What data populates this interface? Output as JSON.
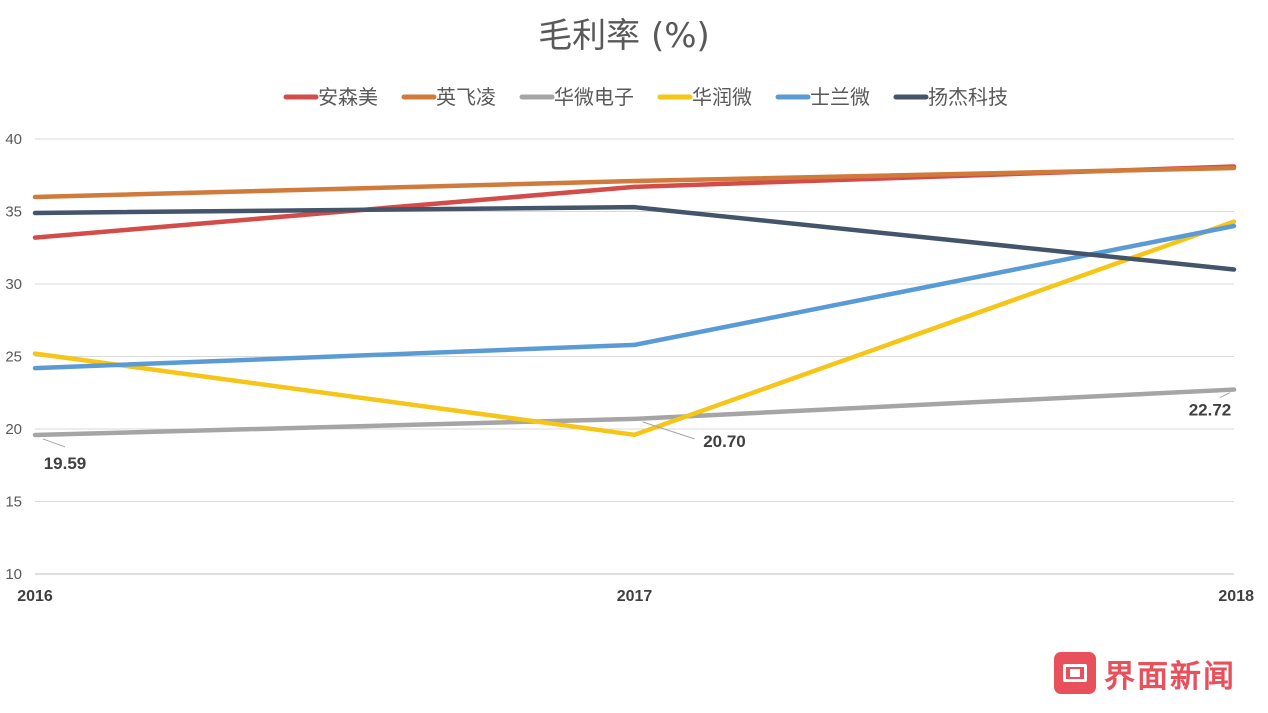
{
  "chart_data": {
    "type": "line",
    "title": "毛利率 (%)",
    "xlabel": "",
    "ylabel": "",
    "x": [
      "2016",
      "2017",
      "2018"
    ],
    "ylim": [
      10,
      40
    ],
    "y_ticks": [
      10,
      15,
      20,
      25,
      30,
      35,
      40
    ],
    "grid": true,
    "legend_position": "top",
    "series": [
      {
        "name": "安森美",
        "color": "#d34c4a",
        "values": [
          33.2,
          36.7,
          38.1
        ]
      },
      {
        "name": "英飞凌",
        "color": "#d07a3b",
        "values": [
          36.0,
          37.1,
          38.0
        ]
      },
      {
        "name": "华微电子",
        "color": "#a5a5a5",
        "values": [
          19.59,
          20.7,
          22.72
        ]
      },
      {
        "name": "华润微",
        "color": "#f5c518",
        "values": [
          25.2,
          19.6,
          34.3
        ]
      },
      {
        "name": "士兰微",
        "color": "#5b9bd5",
        "values": [
          24.2,
          25.8,
          34.0
        ]
      },
      {
        "name": "扬杰科技",
        "color": "#44546a",
        "values": [
          34.9,
          35.3,
          31.0
        ]
      }
    ],
    "data_labels": [
      {
        "series": "华微电子",
        "index": 0,
        "text": "19.59"
      },
      {
        "series": "华微电子",
        "index": 1,
        "text": "20.70"
      },
      {
        "series": "华微电子",
        "index": 2,
        "text": "22.72"
      }
    ]
  },
  "brand": {
    "name": "界面新闻",
    "color": "#e8505b"
  }
}
